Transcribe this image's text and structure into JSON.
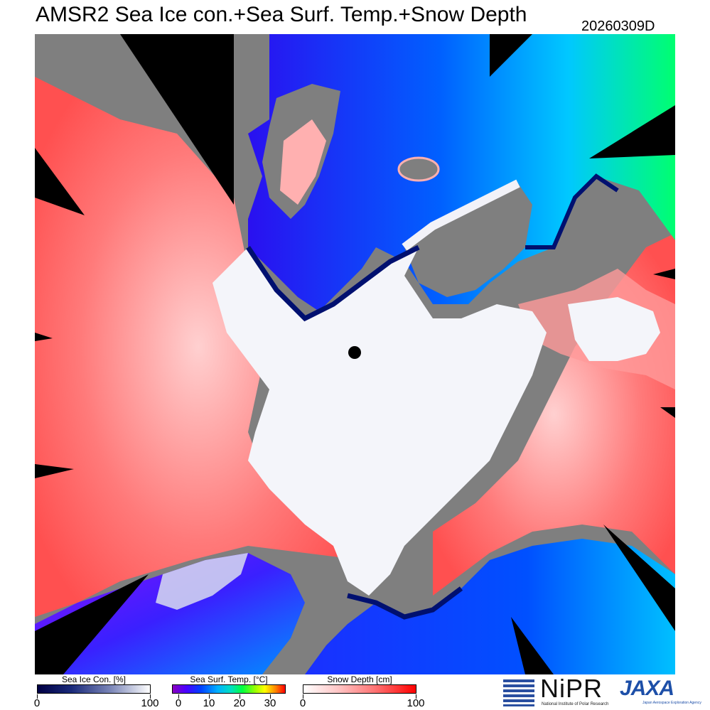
{
  "header": {
    "title": "AMSR2 Sea Ice con.+Sea Surf. Temp.+Snow Depth",
    "date": "20260309D"
  },
  "map": {
    "pole_marker": "north-pole-marker",
    "colors": {
      "land": "#7f7f7f",
      "no_data": "#000000",
      "ice": "#f4f5fa",
      "snow_high": "#ff2020",
      "snow_low": "#ffb8b8",
      "ocean_cold": "#0a14c8",
      "ocean_mid": "#0070ff",
      "ocean_warm": "#00ff60",
      "ice_edge": "#001070"
    }
  },
  "legends": [
    {
      "id": "ice",
      "label": "Sea Ice Con. [%]",
      "ticks": [
        "0",
        "100"
      ],
      "tick_positions": [
        0,
        100
      ],
      "min": 0,
      "max": 100
    },
    {
      "id": "sst",
      "label": "Sea Surf. Temp. [°C]",
      "ticks": [
        "0",
        "10",
        "20",
        "30"
      ],
      "tick_positions": [
        0,
        10,
        20,
        30
      ],
      "min": -2,
      "max": 35
    },
    {
      "id": "snow",
      "label": "Snow Depth [cm]",
      "ticks": [
        "0",
        "100"
      ],
      "tick_positions": [
        0,
        100
      ],
      "min": 0,
      "max": 100
    }
  ],
  "logos": {
    "nipr_name": "NiPR",
    "nipr_sub": "National Institute of Polar Research",
    "jaxa_name": "JAXA",
    "jaxa_sub": "Japan Aerospace Exploration Agency"
  }
}
